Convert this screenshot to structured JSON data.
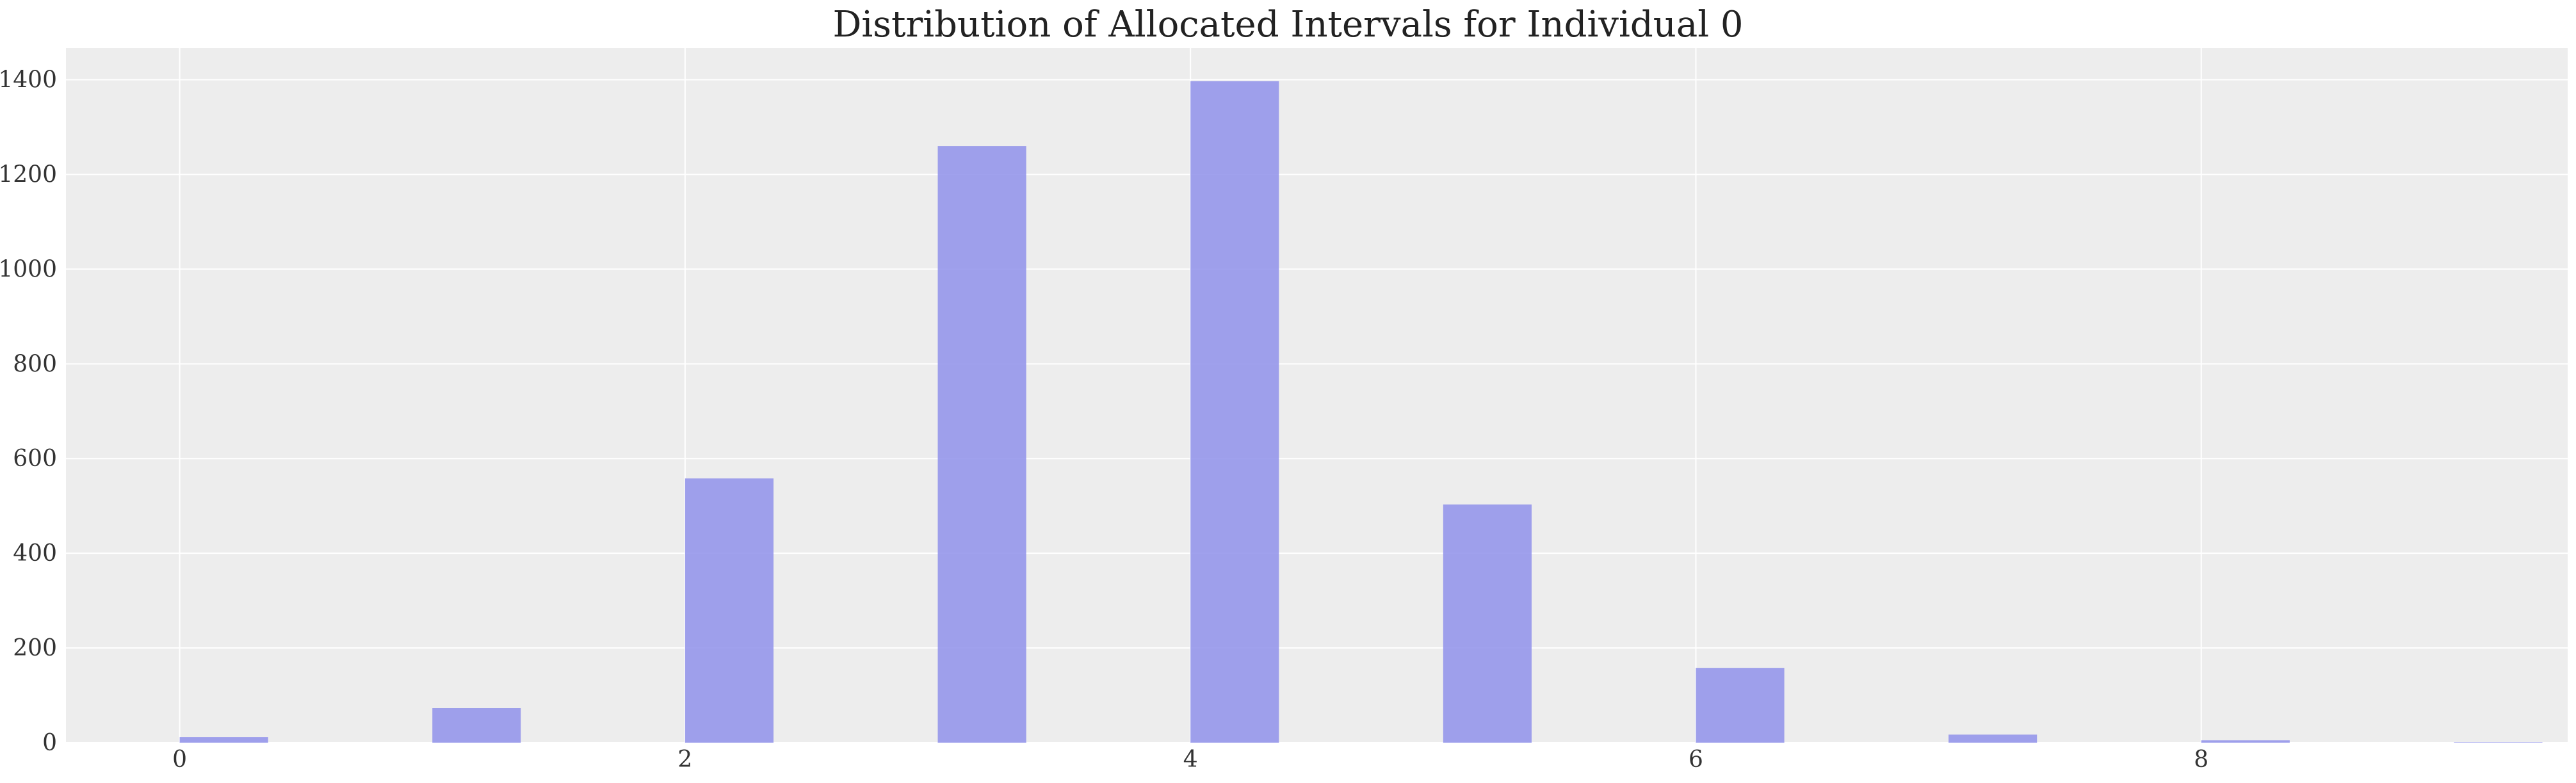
{
  "chart_data": {
    "type": "bar",
    "title": "Distribution of Allocated Intervals for Individual 0",
    "xlabel": "",
    "ylabel": "",
    "x": [
      0,
      1,
      2,
      3,
      4,
      5,
      6,
      7,
      8,
      9
    ],
    "values": [
      12,
      73,
      558,
      1260,
      1397,
      503,
      158,
      17,
      5,
      1
    ],
    "xlim": [
      -0.45,
      9.45
    ],
    "ylim": [
      0,
      1467
    ],
    "xticks": [
      0,
      2,
      4,
      6,
      8
    ],
    "yticks": [
      0,
      200,
      400,
      600,
      800,
      1000,
      1200,
      1400
    ],
    "grid": true,
    "colors": {
      "bar": "#8f91ea",
      "plot_background": "#ededed",
      "grid": "#ffffff"
    }
  }
}
